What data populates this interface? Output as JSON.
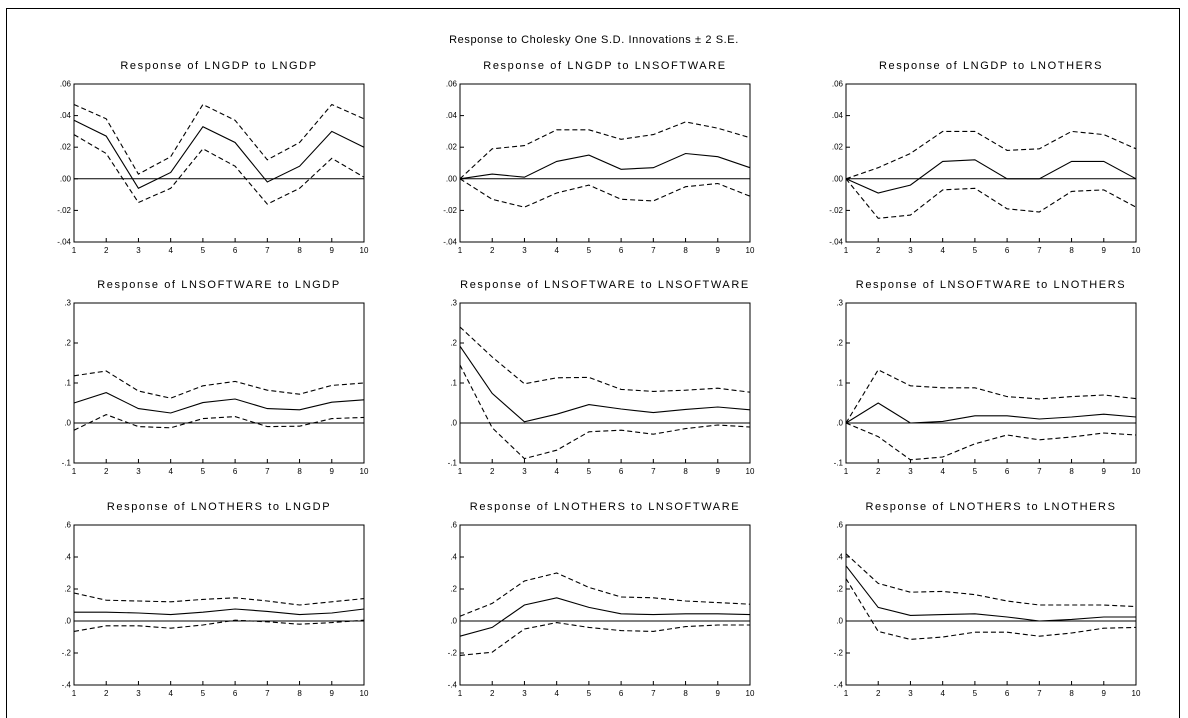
{
  "title": "Response to Cholesky One S.D. Innovations ± 2 S.E.",
  "chart_data": [
    {
      "type": "line",
      "title": "Response of LNGDP to LNGDP",
      "x": [
        1,
        2,
        3,
        4,
        5,
        6,
        7,
        8,
        9,
        10
      ],
      "ylim": [
        -0.04,
        0.06
      ],
      "yticks": [
        ".06",
        ".04",
        ".02",
        ".00",
        "-.02",
        "-.04"
      ],
      "ytick_values": [
        0.06,
        0.04,
        0.02,
        0,
        -0.02,
        -0.04
      ],
      "series": [
        {
          "values": [
            0.037,
            0.027,
            -0.006,
            0.004,
            0.033,
            0.023,
            -0.002,
            0.008,
            0.03,
            0.02
          ]
        },
        {
          "values": [
            0.047,
            0.038,
            0.003,
            0.014,
            0.047,
            0.037,
            0.012,
            0.023,
            0.047,
            0.038
          ]
        },
        {
          "values": [
            0.028,
            0.016,
            -0.015,
            -0.006,
            0.019,
            0.008,
            -0.016,
            -0.006,
            0.013,
            0.001
          ]
        }
      ]
    },
    {
      "type": "line",
      "title": "Response of LNGDP to LNSOFTWARE",
      "x": [
        1,
        2,
        3,
        4,
        5,
        6,
        7,
        8,
        9,
        10
      ],
      "ylim": [
        -0.04,
        0.06
      ],
      "yticks": [
        ".06",
        ".04",
        ".02",
        ".00",
        "-.02",
        "-.04"
      ],
      "ytick_values": [
        0.06,
        0.04,
        0.02,
        0,
        -0.02,
        -0.04
      ],
      "series": [
        {
          "values": [
            0.0,
            0.003,
            0.001,
            0.011,
            0.015,
            0.006,
            0.007,
            0.016,
            0.014,
            0.007
          ]
        },
        {
          "values": [
            0.0,
            0.019,
            0.021,
            0.031,
            0.031,
            0.025,
            0.028,
            0.036,
            0.032,
            0.026
          ]
        },
        {
          "values": [
            0.0,
            -0.013,
            -0.018,
            -0.009,
            -0.004,
            -0.013,
            -0.014,
            -0.005,
            -0.003,
            -0.011
          ]
        }
      ]
    },
    {
      "type": "line",
      "title": "Response of LNGDP to LNOTHERS",
      "x": [
        1,
        2,
        3,
        4,
        5,
        6,
        7,
        8,
        9,
        10
      ],
      "ylim": [
        -0.04,
        0.06
      ],
      "yticks": [
        ".06",
        ".04",
        ".02",
        ".00",
        "-.02",
        "-.04"
      ],
      "ytick_values": [
        0.06,
        0.04,
        0.02,
        0,
        -0.02,
        -0.04
      ],
      "series": [
        {
          "values": [
            0.0,
            -0.009,
            -0.004,
            0.011,
            0.012,
            0.0,
            0.0,
            0.011,
            0.011,
            0.0
          ]
        },
        {
          "values": [
            0.0,
            0.007,
            0.016,
            0.03,
            0.03,
            0.018,
            0.019,
            0.03,
            0.028,
            0.019
          ]
        },
        {
          "values": [
            0.0,
            -0.025,
            -0.023,
            -0.007,
            -0.006,
            -0.019,
            -0.021,
            -0.008,
            -0.007,
            -0.018
          ]
        }
      ]
    },
    {
      "type": "line",
      "title": "Response of LNSOFTWARE to LNGDP",
      "x": [
        1,
        2,
        3,
        4,
        5,
        6,
        7,
        8,
        9,
        10
      ],
      "ylim": [
        -0.1,
        0.3
      ],
      "yticks": [
        ".3",
        ".2",
        ".1",
        ".0",
        "-.1"
      ],
      "ytick_values": [
        0.3,
        0.2,
        0.1,
        0,
        -0.1
      ],
      "series": [
        {
          "values": [
            0.05,
            0.076,
            0.036,
            0.025,
            0.051,
            0.06,
            0.036,
            0.033,
            0.052,
            0.058
          ]
        },
        {
          "values": [
            0.118,
            0.13,
            0.08,
            0.062,
            0.093,
            0.104,
            0.082,
            0.072,
            0.094,
            0.1
          ]
        },
        {
          "values": [
            -0.018,
            0.021,
            -0.009,
            -0.012,
            0.011,
            0.016,
            -0.009,
            -0.008,
            0.011,
            0.014
          ]
        }
      ]
    },
    {
      "type": "line",
      "title": "Response of LNSOFTWARE to LNSOFTWARE",
      "x": [
        1,
        2,
        3,
        4,
        5,
        6,
        7,
        8,
        9,
        10
      ],
      "ylim": [
        -0.1,
        0.3
      ],
      "yticks": [
        ".3",
        ".2",
        ".1",
        ".0",
        "-.1"
      ],
      "ytick_values": [
        0.3,
        0.2,
        0.1,
        0,
        -0.1
      ],
      "series": [
        {
          "values": [
            0.192,
            0.074,
            0.003,
            0.022,
            0.046,
            0.035,
            0.026,
            0.034,
            0.04,
            0.033
          ]
        },
        {
          "values": [
            0.24,
            0.165,
            0.098,
            0.113,
            0.114,
            0.084,
            0.079,
            0.082,
            0.087,
            0.077
          ]
        },
        {
          "values": [
            0.145,
            -0.012,
            -0.089,
            -0.068,
            -0.022,
            -0.018,
            -0.028,
            -0.014,
            -0.005,
            -0.01
          ]
        }
      ]
    },
    {
      "type": "line",
      "title": "Response of LNSOFTWARE to LNOTHERS",
      "x": [
        1,
        2,
        3,
        4,
        5,
        6,
        7,
        8,
        9,
        10
      ],
      "ylim": [
        -0.1,
        0.3
      ],
      "yticks": [
        ".3",
        ".2",
        ".1",
        ".0",
        "-.1"
      ],
      "ytick_values": [
        0.3,
        0.2,
        0.1,
        0,
        -0.1
      ],
      "series": [
        {
          "values": [
            0.0,
            0.05,
            0.0,
            0.004,
            0.018,
            0.018,
            0.01,
            0.015,
            0.022,
            0.015
          ]
        },
        {
          "values": [
            0.0,
            0.133,
            0.093,
            0.088,
            0.088,
            0.066,
            0.06,
            0.066,
            0.07,
            0.061
          ]
        },
        {
          "values": [
            0.0,
            -0.034,
            -0.092,
            -0.085,
            -0.052,
            -0.03,
            -0.042,
            -0.035,
            -0.025,
            -0.03
          ]
        }
      ]
    },
    {
      "type": "line",
      "title": "Response of LNOTHERS to LNGDP",
      "x": [
        1,
        2,
        3,
        4,
        5,
        6,
        7,
        8,
        9,
        10
      ],
      "ylim": [
        -0.4,
        0.6
      ],
      "yticks": [
        ".6",
        ".4",
        ".2",
        ".0",
        "-.2",
        "-.4"
      ],
      "ytick_values": [
        0.6,
        0.4,
        0.2,
        0,
        -0.2,
        -0.4
      ],
      "series": [
        {
          "values": [
            0.055,
            0.055,
            0.05,
            0.04,
            0.055,
            0.075,
            0.06,
            0.04,
            0.05,
            0.075
          ]
        },
        {
          "values": [
            0.175,
            0.13,
            0.125,
            0.12,
            0.135,
            0.145,
            0.125,
            0.1,
            0.12,
            0.14
          ]
        },
        {
          "values": [
            -0.065,
            -0.03,
            -0.03,
            -0.045,
            -0.025,
            0.005,
            -0.005,
            -0.02,
            -0.01,
            0.005
          ]
        }
      ]
    },
    {
      "type": "line",
      "title": "Response of LNOTHERS to LNSOFTWARE",
      "x": [
        1,
        2,
        3,
        4,
        5,
        6,
        7,
        8,
        9,
        10
      ],
      "ylim": [
        -0.4,
        0.6
      ],
      "yticks": [
        ".6",
        ".4",
        ".2",
        ".0",
        "-.2",
        "-.4"
      ],
      "ytick_values": [
        0.6,
        0.4,
        0.2,
        0,
        -0.2,
        -0.4
      ],
      "series": [
        {
          "values": [
            -0.095,
            -0.04,
            0.1,
            0.145,
            0.085,
            0.045,
            0.04,
            0.045,
            0.045,
            0.04
          ]
        },
        {
          "values": [
            0.03,
            0.11,
            0.25,
            0.3,
            0.21,
            0.15,
            0.145,
            0.125,
            0.115,
            0.105
          ]
        },
        {
          "values": [
            -0.215,
            -0.195,
            -0.05,
            -0.01,
            -0.04,
            -0.06,
            -0.065,
            -0.035,
            -0.025,
            -0.025
          ]
        }
      ]
    },
    {
      "type": "line",
      "title": "Response of LNOTHERS to LNOTHERS",
      "x": [
        1,
        2,
        3,
        4,
        5,
        6,
        7,
        8,
        9,
        10
      ],
      "ylim": [
        -0.4,
        0.6
      ],
      "yticks": [
        ".6",
        ".4",
        ".2",
        ".0",
        "-.2",
        "-.4"
      ],
      "ytick_values": [
        0.6,
        0.4,
        0.2,
        0,
        -0.2,
        -0.4
      ],
      "series": [
        {
          "values": [
            0.345,
            0.085,
            0.035,
            0.04,
            0.045,
            0.025,
            0.0,
            0.01,
            0.025,
            0.025
          ]
        },
        {
          "values": [
            0.42,
            0.235,
            0.18,
            0.185,
            0.165,
            0.125,
            0.1,
            0.1,
            0.1,
            0.09
          ]
        },
        {
          "values": [
            0.265,
            -0.065,
            -0.115,
            -0.1,
            -0.07,
            -0.07,
            -0.095,
            -0.075,
            -0.045,
            -0.04
          ]
        }
      ]
    }
  ]
}
